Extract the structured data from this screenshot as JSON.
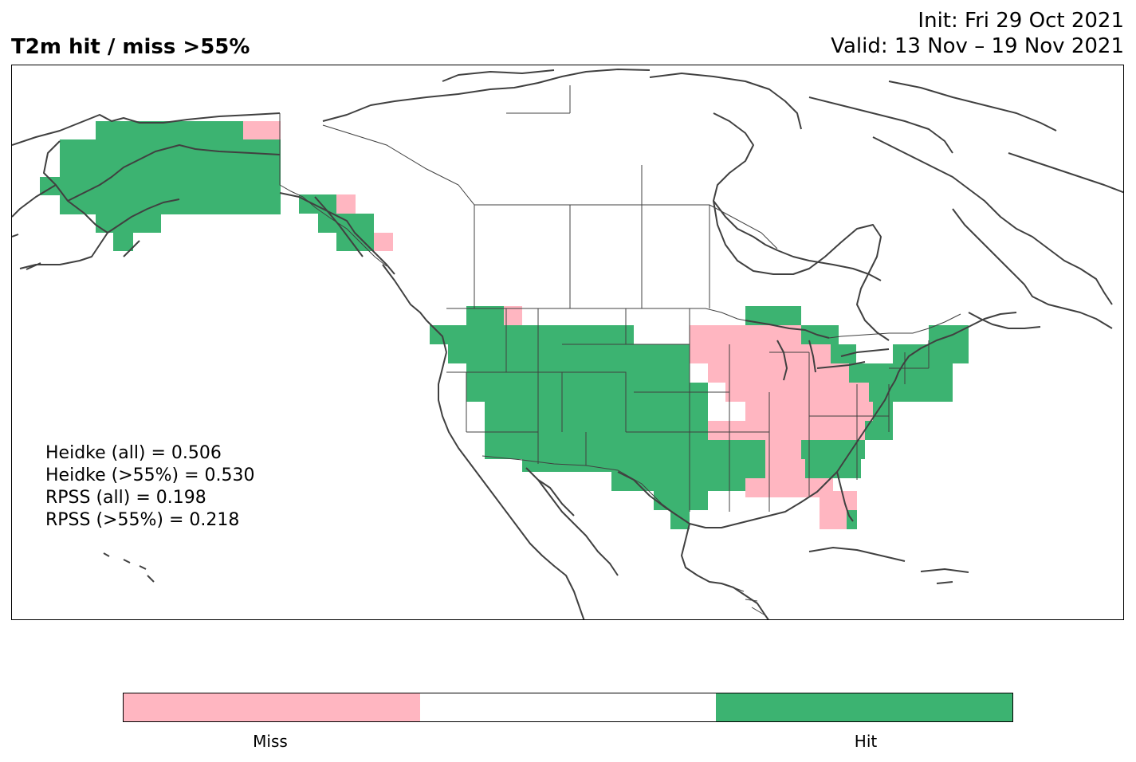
{
  "header": {
    "title": "T2m hit / miss  >55%",
    "init": "Init: Fri 29 Oct 2021",
    "valid": "Valid: 13 Nov – 19 Nov 2021"
  },
  "scores": [
    "Heidke (all) = 0.506",
    "Heidke (>55%) = 0.530",
    "RPSS (all) = 0.198",
    "RPSS (>55%) = 0.218"
  ],
  "colors": {
    "hit": "#3cb371",
    "miss": "#ffb6c1",
    "neutral": "#ffffff",
    "coast": "#404040",
    "border": "#404040"
  },
  "colorbar": {
    "labels": [
      "Miss",
      "Hit"
    ],
    "segments": [
      "miss",
      "neutral",
      "hit"
    ]
  }
}
